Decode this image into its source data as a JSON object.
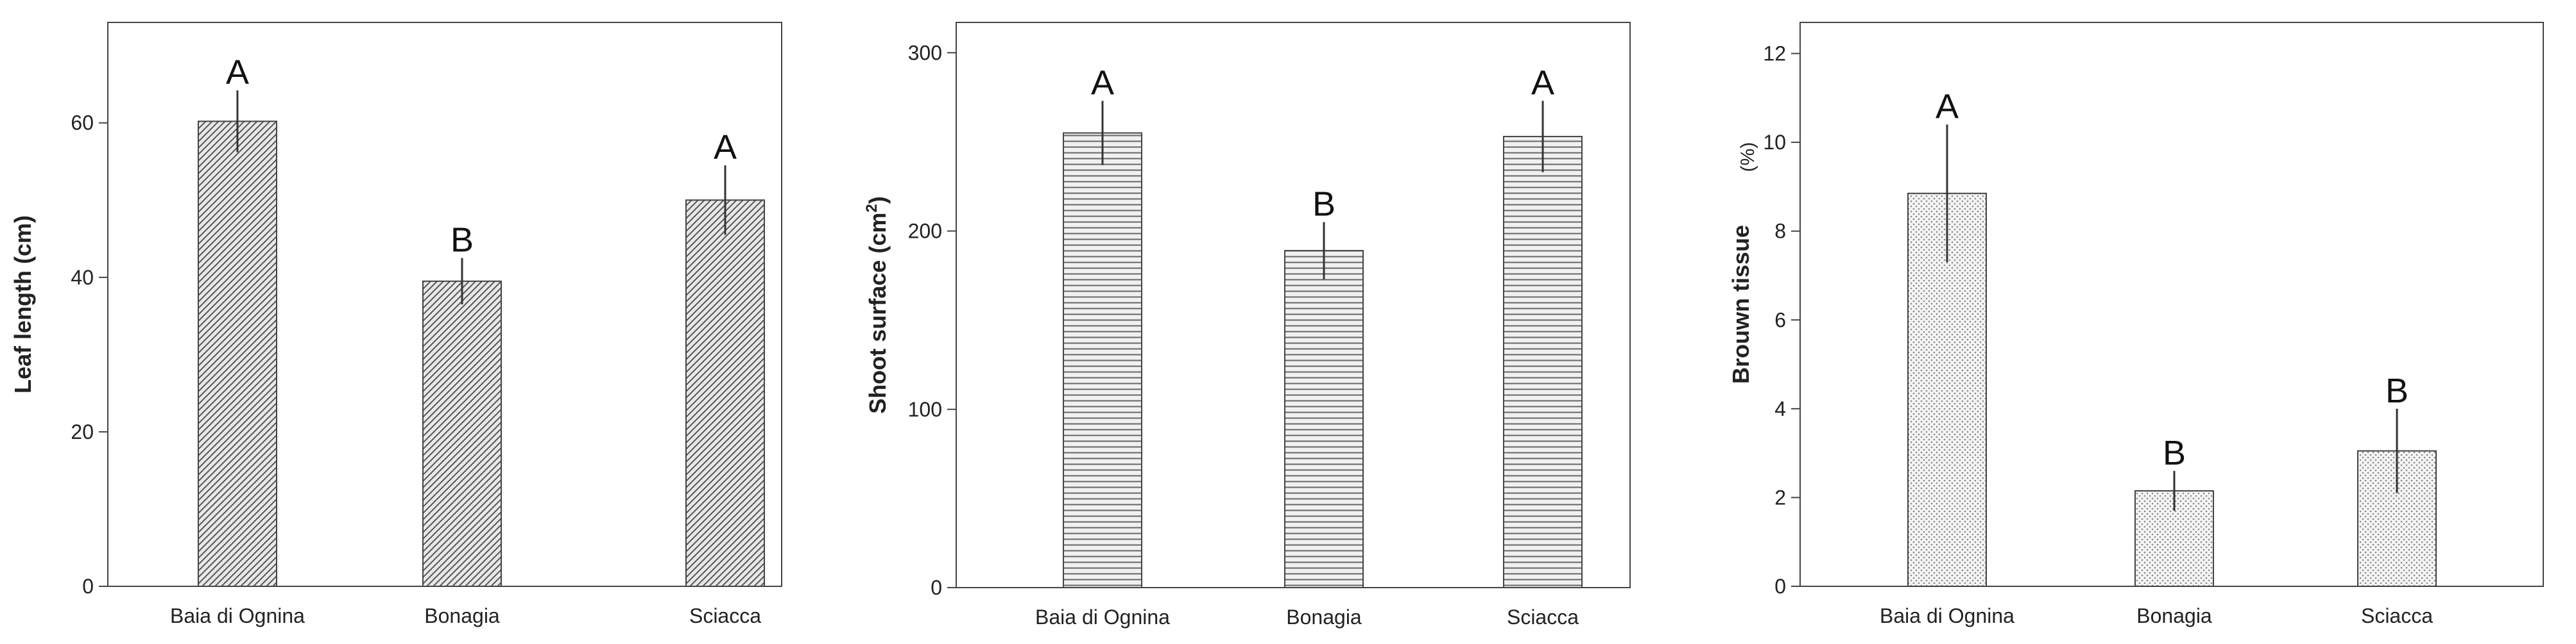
{
  "chart_data": [
    {
      "type": "bar",
      "categories": [
        "Baia di Ognina",
        "Bonagia",
        "Sciacca"
      ],
      "values": [
        60.2,
        39.5,
        50.0
      ],
      "errors": [
        4.0,
        3.0,
        4.5
      ],
      "letters": [
        "A",
        "B",
        "A"
      ],
      "ylabel": "Leaf length (cm)",
      "ylim": [
        0,
        73
      ],
      "yticks": [
        0,
        20,
        40,
        60
      ],
      "pattern": "diagonal",
      "grid": false
    },
    {
      "type": "bar",
      "categories": [
        "Baia di Ognina",
        "Bonagia",
        "Sciacca"
      ],
      "values": [
        255,
        189,
        253
      ],
      "errors": [
        18,
        16,
        20
      ],
      "letters": [
        "A",
        "B",
        "A"
      ],
      "ylabel": "Shoot surface (cm",
      "ylabel_sup": "2",
      "ylabel_end": ")",
      "ylim": [
        0,
        317
      ],
      "yticks": [
        0,
        100,
        200,
        300
      ],
      "pattern": "horizontal",
      "grid": false
    },
    {
      "type": "bar",
      "categories": [
        "Baia di Ognina",
        "Bonagia",
        "Sciacca"
      ],
      "values": [
        8.85,
        2.15,
        3.05
      ],
      "errors": [
        1.55,
        0.45,
        0.95
      ],
      "letters": [
        "A",
        "B",
        "B"
      ],
      "ylabel": "Brouwn tissue",
      "ylabel_unit": "(%)",
      "ylim": [
        0,
        12.7
      ],
      "yticks": [
        0,
        2,
        4,
        6,
        8,
        10,
        12
      ],
      "pattern": "dotted",
      "grid": false
    }
  ]
}
